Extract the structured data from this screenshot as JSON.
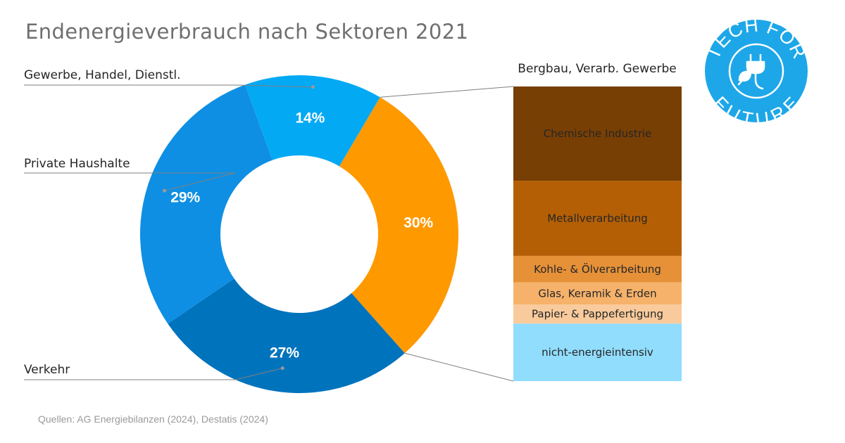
{
  "title": "Endenergieverbrauch nach Sektoren 2021",
  "source": "Quellen: AG Energiebilanzen (2024), Destatis (2024)",
  "logo": {
    "top_text": "TECH FOR",
    "bottom_text": "FUTURE",
    "icon": "plug-leaf-icon",
    "color": "#1ea7e8"
  },
  "chart_data": [
    {
      "type": "pie",
      "title": "Endenergieverbrauch nach Sektoren 2021",
      "donut": true,
      "slices": [
        {
          "label": "Bergbau, Verarb. Gewerbe",
          "value": 30,
          "display": "30%",
          "color": "#ff9900"
        },
        {
          "label": "Verkehr",
          "value": 27,
          "display": "27%",
          "color": "#0073bd"
        },
        {
          "label": "Private Haushalte",
          "value": 29,
          "display": "29%",
          "color": "#0e8fe3"
        },
        {
          "label": "Gewerbe, Handel, Dienstl.",
          "value": 14,
          "display": "14%",
          "color": "#04a9f4"
        }
      ]
    },
    {
      "type": "bar",
      "stacked": true,
      "title": "Bergbau, Verarb. Gewerbe",
      "categories": [
        "Chemische Industrie",
        "Metallverarbeitung",
        "Kohle- & Ölverarbeitung",
        "Glas, Keramik & Erden",
        "Papier- & Pappefertigung",
        "nicht-energieintensiv"
      ],
      "values": [
        32,
        25.5,
        9,
        7.5,
        6.5,
        19.5
      ],
      "colors": [
        "#783f04",
        "#b45f06",
        "#e69138",
        "#f6b26b",
        "#f9cb9c",
        "#91ddfd"
      ]
    }
  ]
}
